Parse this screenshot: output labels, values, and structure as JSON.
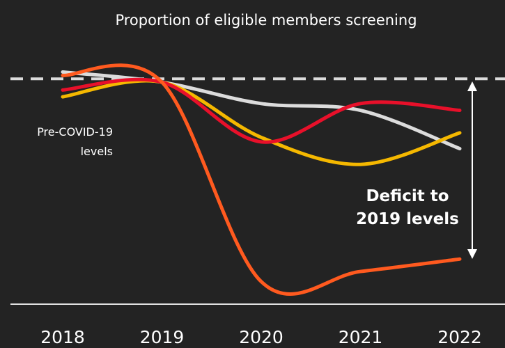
{
  "chart_data": {
    "type": "line",
    "title": "Proportion of eligible members screening",
    "categories": [
      "2018",
      "2019",
      "2020",
      "2021",
      "2022"
    ],
    "series": [
      {
        "color": "#dcdcdc",
        "values": [
          103,
          98.5,
          89,
          86,
          69
        ]
      },
      {
        "color": "#f5b800",
        "values": [
          92,
          98.5,
          74,
          62,
          76
        ]
      },
      {
        "color": "#e8102a",
        "values": [
          95,
          98.5,
          72,
          89,
          86
        ]
      },
      {
        "color": "#ff5a1f",
        "values": [
          101.5,
          98.5,
          10,
          14.5,
          20
        ]
      }
    ],
    "reference": 100,
    "reference_label": "Pre-COVID-19 levels",
    "annotation": "Deficit to 2019 levels",
    "ylim": [
      0,
      105
    ]
  }
}
